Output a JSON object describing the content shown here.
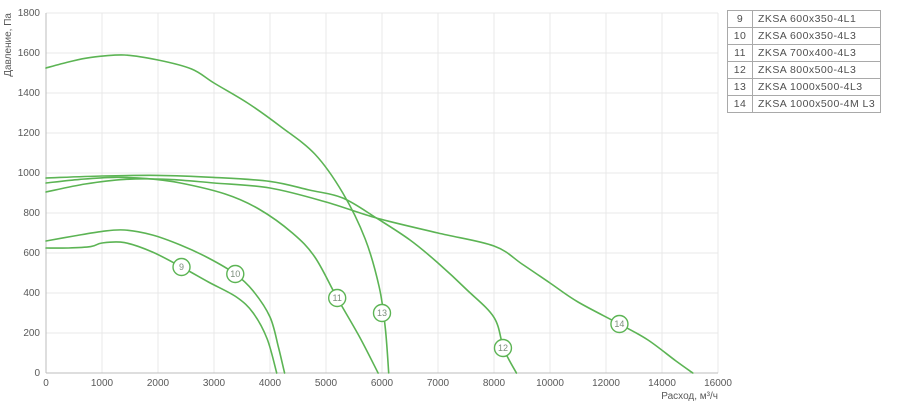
{
  "chart_data": {
    "type": "line",
    "title": "",
    "xlabel": "Расход, м³/ч",
    "ylabel": "Давление, Па",
    "x_ticks": [
      0,
      1000,
      2000,
      3000,
      4000,
      5000,
      6000,
      7000,
      8000,
      10000,
      12000,
      14000,
      16000
    ],
    "x_scale_note": "tick marks equally spaced: 1000 m3/h per division up to 8000, then 2000 m3/h per division up to 16000",
    "y_ticks": [
      0,
      200,
      400,
      600,
      800,
      1000,
      1200,
      1400,
      1600,
      1800
    ],
    "ylim": [
      0,
      1800
    ],
    "grid": true,
    "legend_position": "top-right-outside",
    "curve_color": "#5cb454",
    "series": [
      {
        "id": "9",
        "name": "ZKSA 600x350-4L1",
        "marker": {
          "x": 2420,
          "y": 530
        },
        "points": [
          [
            0,
            625
          ],
          [
            400,
            625
          ],
          [
            800,
            632
          ],
          [
            1000,
            650
          ],
          [
            1400,
            652
          ],
          [
            1900,
            605
          ],
          [
            2420,
            530
          ],
          [
            2900,
            455
          ],
          [
            3400,
            380
          ],
          [
            3700,
            300
          ],
          [
            3950,
            170
          ],
          [
            4120,
            0
          ]
        ]
      },
      {
        "id": "10",
        "name": "ZKSA 600x350-4L3",
        "marker": {
          "x": 3380,
          "y": 495
        },
        "points": [
          [
            0,
            660
          ],
          [
            500,
            685
          ],
          [
            1000,
            708
          ],
          [
            1400,
            715
          ],
          [
            1900,
            690
          ],
          [
            2400,
            640
          ],
          [
            2900,
            575
          ],
          [
            3380,
            495
          ],
          [
            3700,
            410
          ],
          [
            4000,
            280
          ],
          [
            4150,
            130
          ],
          [
            4260,
            0
          ]
        ]
      },
      {
        "id": "11",
        "name": "ZKSA 700x400-4L3",
        "marker": {
          "x": 5200,
          "y": 375
        },
        "points": [
          [
            0,
            950
          ],
          [
            600,
            968
          ],
          [
            1200,
            978
          ],
          [
            1800,
            972
          ],
          [
            2400,
            950
          ],
          [
            3200,
            895
          ],
          [
            3800,
            820
          ],
          [
            4400,
            700
          ],
          [
            4800,
            580
          ],
          [
            5200,
            375
          ],
          [
            5600,
            180
          ],
          [
            5930,
            0
          ]
        ]
      },
      {
        "id": "12",
        "name": "ZKSA 800x500-4L3",
        "marker": {
          "x": 8320,
          "y": 125
        },
        "points": [
          [
            0,
            975
          ],
          [
            1000,
            985
          ],
          [
            2000,
            988
          ],
          [
            3000,
            978
          ],
          [
            4000,
            958
          ],
          [
            4700,
            915
          ],
          [
            5300,
            875
          ],
          [
            5900,
            775
          ],
          [
            6500,
            665
          ],
          [
            7000,
            550
          ],
          [
            7500,
            420
          ],
          [
            8000,
            278
          ],
          [
            8350,
            120
          ],
          [
            8800,
            0
          ]
        ]
      },
      {
        "id": "13",
        "name": "ZKSA 1000x500-4L3",
        "marker": {
          "x": 6000,
          "y": 300
        },
        "points": [
          [
            0,
            1525
          ],
          [
            400,
            1555
          ],
          [
            800,
            1578
          ],
          [
            1400,
            1590
          ],
          [
            2000,
            1565
          ],
          [
            2600,
            1520
          ],
          [
            3000,
            1450
          ],
          [
            3600,
            1350
          ],
          [
            4200,
            1230
          ],
          [
            4800,
            1095
          ],
          [
            5300,
            900
          ],
          [
            5700,
            670
          ],
          [
            5950,
            430
          ],
          [
            6060,
            220
          ],
          [
            6120,
            0
          ]
        ]
      },
      {
        "id": "14",
        "name": "ZKSA 1000x500-4M L3",
        "marker": {
          "x": 12480,
          "y": 245
        },
        "points": [
          [
            0,
            905
          ],
          [
            700,
            945
          ],
          [
            1400,
            968
          ],
          [
            2200,
            968
          ],
          [
            3000,
            950
          ],
          [
            4000,
            925
          ],
          [
            5000,
            855
          ],
          [
            5900,
            775
          ],
          [
            7000,
            700
          ],
          [
            8000,
            635
          ],
          [
            9000,
            545
          ],
          [
            10000,
            450
          ],
          [
            11000,
            355
          ],
          [
            12480,
            245
          ],
          [
            13500,
            165
          ],
          [
            14500,
            60
          ],
          [
            15100,
            0
          ]
        ]
      }
    ]
  },
  "legend": {
    "rows": [
      {
        "num": "9",
        "label": "ZKSA 600x350-4L1"
      },
      {
        "num": "10",
        "label": "ZKSA 600x350-4L3"
      },
      {
        "num": "11",
        "label": "ZKSA 700x400-4L3"
      },
      {
        "num": "12",
        "label": "ZKSA 800x500-4L3"
      },
      {
        "num": "13",
        "label": "ZKSA 1000x500-4L3"
      },
      {
        "num": "14",
        "label": "ZKSA 1000x500-4M L3"
      }
    ]
  },
  "style": {
    "curve_color": "#5cb454",
    "grid_color": "#e9e9e9",
    "axis_color": "#bdbdbd",
    "tick_text_color": "#595959",
    "marker_text_color": "#7d8f7d",
    "legend_border_color": "#a9a9a9",
    "legend_text_color": "#4f4f4f"
  }
}
